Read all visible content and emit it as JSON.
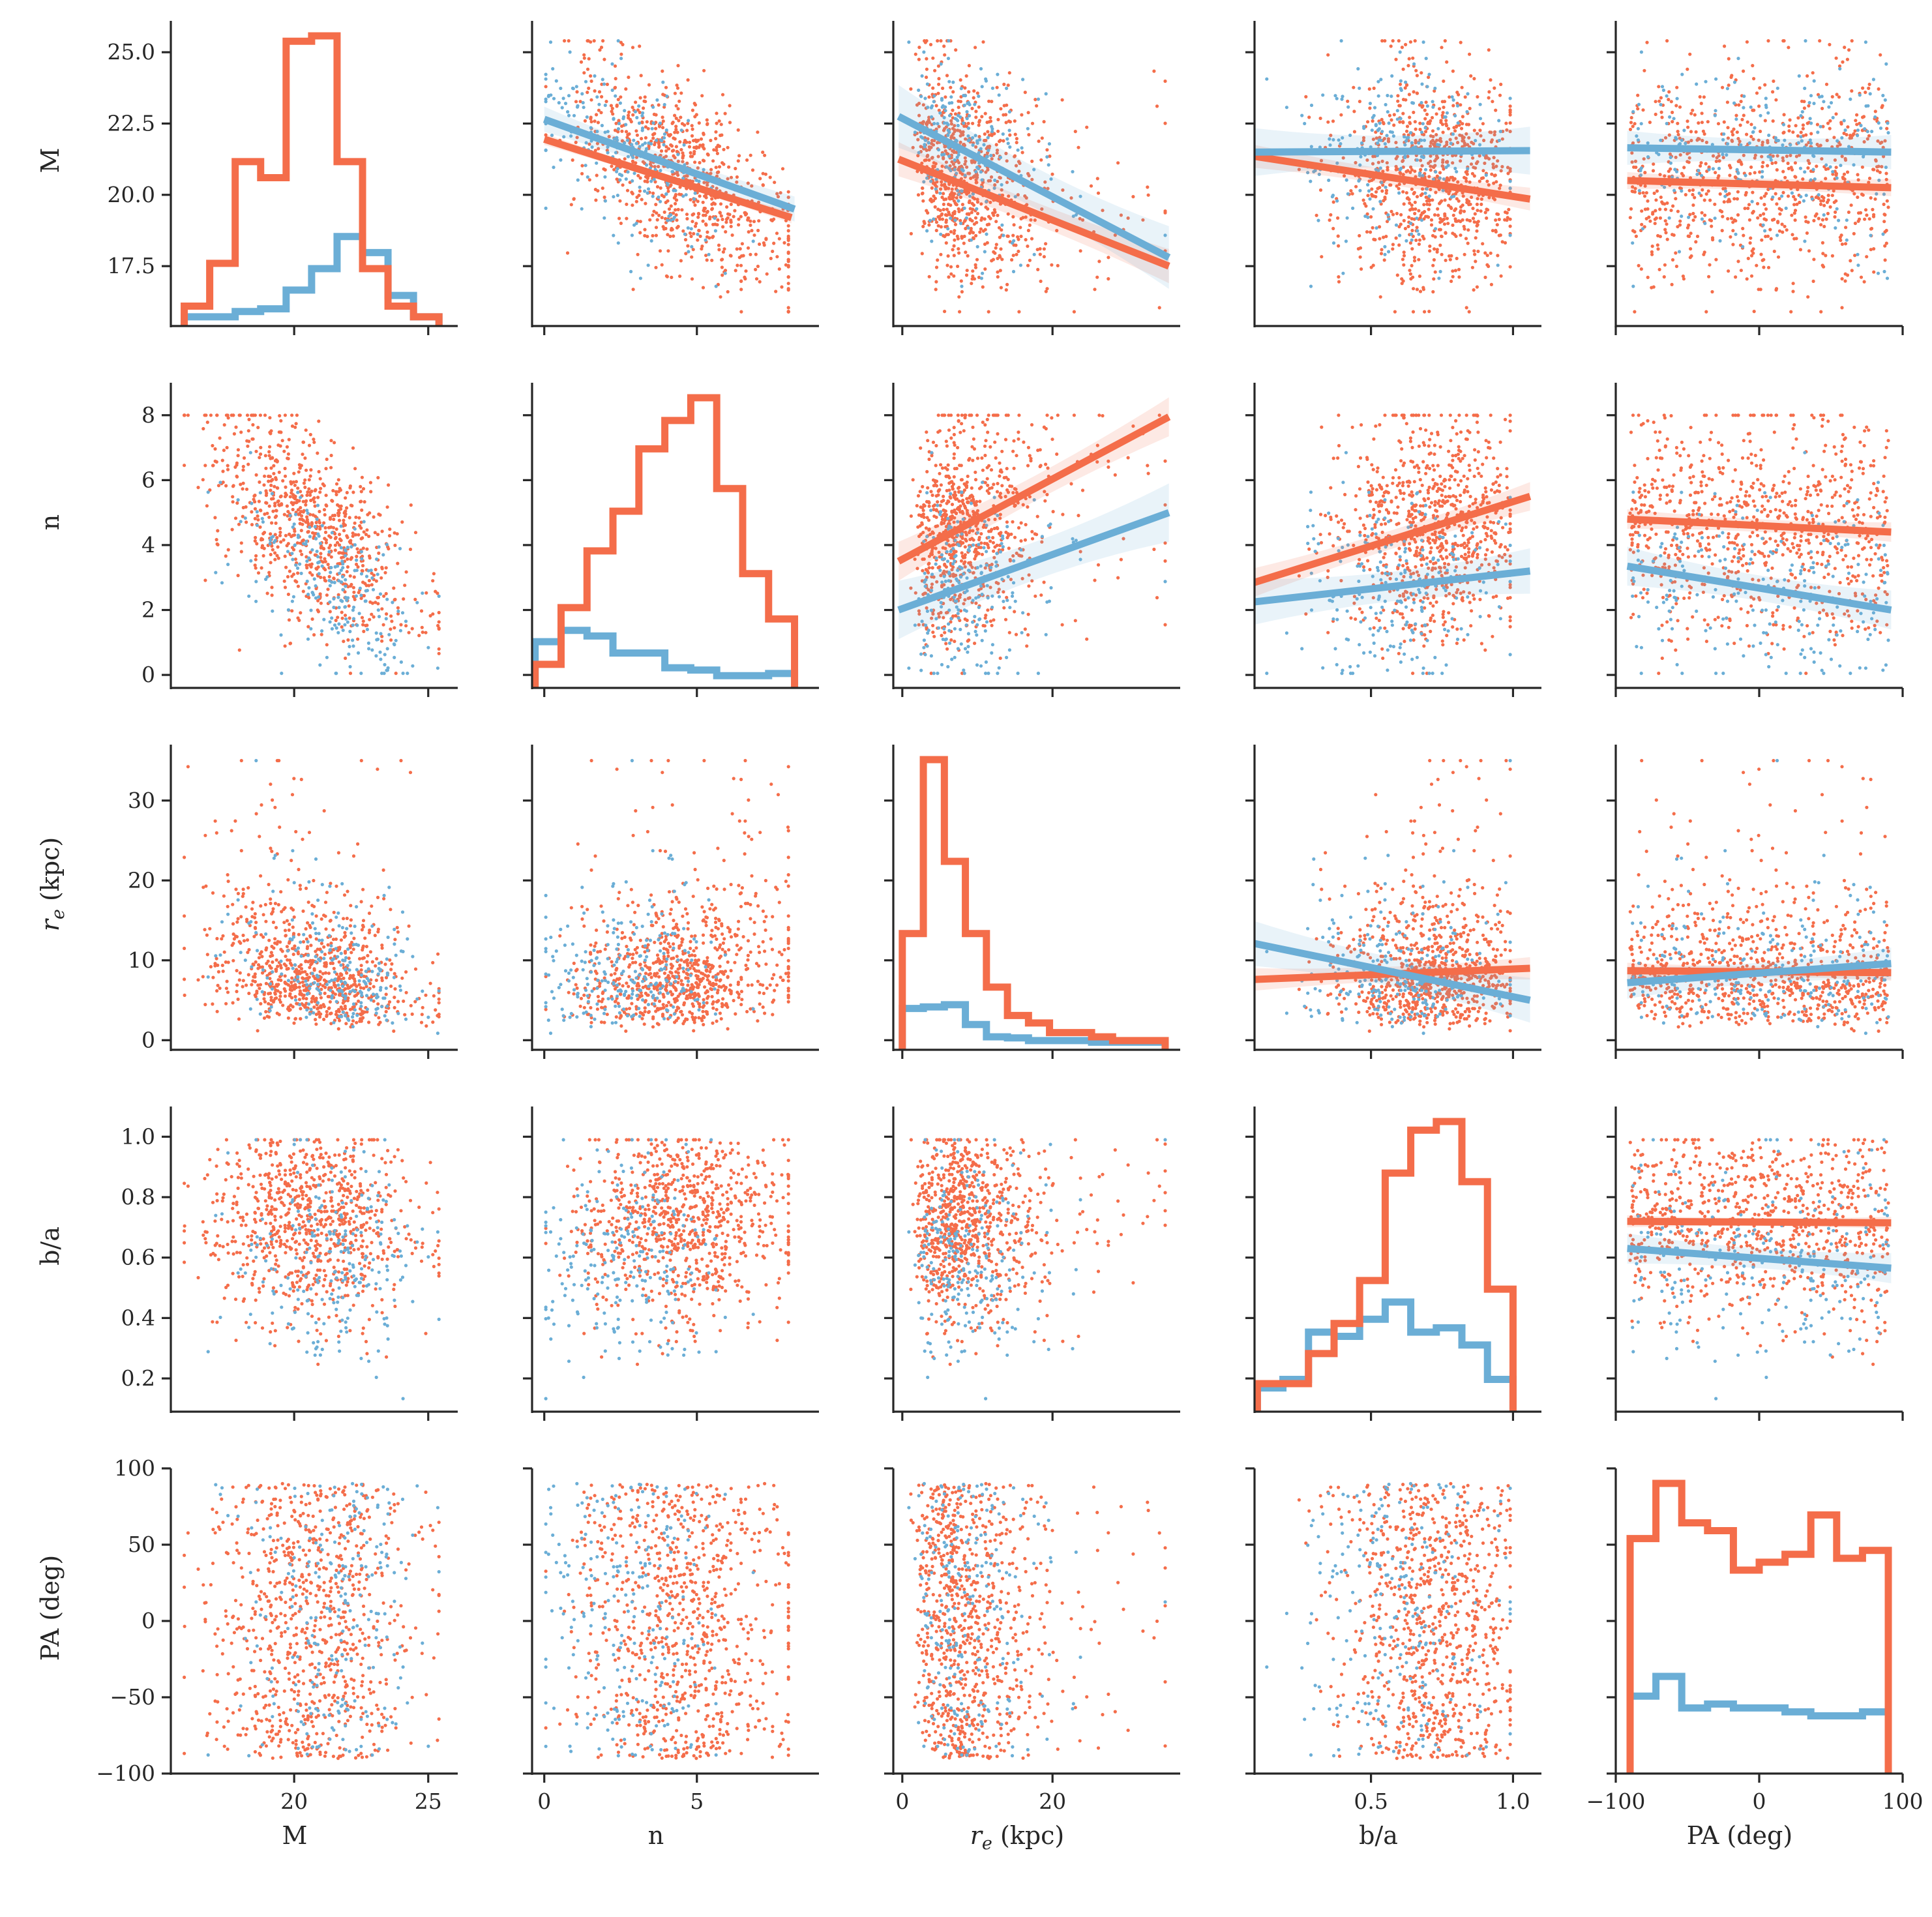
{
  "chart_data": {
    "type": "scatter",
    "kind": "pairplot",
    "variables": [
      {
        "key": "M",
        "label": "M",
        "label_base": "",
        "label_italic": "",
        "label_sub": "",
        "label_suffix": "",
        "range": [
          15.4,
          26.1
        ],
        "ticks": [
          17.5,
          20.0,
          22.5,
          25.0
        ],
        "tick_labels": [
          "17.5",
          "20.0",
          "22.5",
          "25.0"
        ],
        "x_ticks": [
          20,
          25
        ],
        "x_tick_labels": [
          "20",
          "25"
        ]
      },
      {
        "key": "n",
        "label": "n",
        "label_base": "",
        "label_italic": "",
        "label_sub": "",
        "label_suffix": "",
        "range": [
          -0.4,
          9.0
        ],
        "ticks": [
          0,
          2,
          4,
          6,
          8
        ],
        "tick_labels": [
          "0",
          "2",
          "4",
          "6",
          "8"
        ],
        "x_ticks": [
          0,
          5
        ],
        "x_tick_labels": [
          "0",
          "5"
        ]
      },
      {
        "key": "re",
        "label": "",
        "label_base": "",
        "label_italic": "r",
        "label_sub": "e",
        "label_suffix": " (kpc)",
        "range": [
          -1.2,
          37.0
        ],
        "ticks": [
          0,
          10,
          20,
          30
        ],
        "tick_labels": [
          "0",
          "10",
          "20",
          "30"
        ],
        "x_ticks": [
          0,
          20
        ],
        "x_tick_labels": [
          "0",
          "20"
        ]
      },
      {
        "key": "ba",
        "label": "b/a",
        "label_base": "",
        "label_italic": "",
        "label_sub": "",
        "label_suffix": "",
        "range": [
          0.09,
          1.1
        ],
        "ticks": [
          0.2,
          0.4,
          0.6,
          0.8,
          1.0
        ],
        "tick_labels": [
          "0.2",
          "0.4",
          "0.6",
          "0.8",
          "1.0"
        ],
        "x_ticks": [
          0.5,
          1.0
        ],
        "x_tick_labels": [
          "0.5",
          "1.0"
        ]
      },
      {
        "key": "PA",
        "label": "PA (deg)",
        "label_base": "",
        "label_italic": "",
        "label_sub": "",
        "label_suffix": "",
        "range": [
          -100,
          100
        ],
        "ticks": [
          -100,
          -50,
          0,
          50,
          100
        ],
        "tick_labels": [
          "−100",
          "−50",
          "0",
          "50",
          "100"
        ],
        "x_ticks": [
          -100,
          0,
          100
        ],
        "x_tick_labels": [
          "−100",
          "0",
          "100"
        ]
      }
    ],
    "series": [
      {
        "color": "#f46d4a",
        "line_width": 11,
        "n_points": 820,
        "mean": {
          "M": 20.6,
          "n": 4.6,
          "re": 8.2,
          "ba": 0.72,
          "PA": 0
        },
        "sd": {
          "M": 1.9,
          "n": 1.8,
          "re": 5.2,
          "ba": 0.16,
          "PA": 52
        }
      },
      {
        "color": "#6baed6",
        "line_width": 11,
        "n_points": 230,
        "mean": {
          "M": 21.6,
          "n": 2.7,
          "re": 7.8,
          "ba": 0.6,
          "PA": 0
        },
        "sd": {
          "M": 1.6,
          "n": 1.6,
          "re": 5.0,
          "ba": 0.18,
          "PA": 52
        }
      }
    ],
    "histograms": {
      "M": {
        "edges": [
          15.9,
          16.85,
          17.8,
          18.75,
          19.7,
          20.65,
          21.6,
          22.55,
          23.5,
          24.45,
          25.4
        ],
        "series": [
          [
            0.25,
            1.05,
            2.95,
            2.65,
            5.2,
            5.3,
            2.95,
            0.95,
            0.25,
            0.05
          ],
          [
            0.05,
            0.05,
            0.15,
            0.2,
            0.55,
            0.95,
            1.55,
            1.25,
            0.45,
            0.05
          ]
        ]
      },
      "n": {
        "edges": [
          -0.3,
          0.55,
          1.4,
          2.25,
          3.1,
          3.95,
          4.8,
          5.65,
          6.5,
          7.35,
          8.2
        ],
        "series": [
          [
            0.15,
            0.65,
            1.15,
            1.5,
            2.05,
            2.3,
            2.5,
            1.7,
            0.95,
            0.55
          ],
          [
            0.35,
            0.45,
            0.4,
            0.25,
            0.25,
            0.12,
            0.1,
            0.05,
            0.05,
            0.07
          ]
        ]
      },
      "re": {
        "edges": [
          0,
          2.8,
          5.6,
          8.4,
          11.2,
          14.0,
          16.8,
          19.6,
          22.4,
          25.2,
          28.0,
          30.8,
          35.0
        ],
        "series": [
          [
            2.05,
            5.3,
            3.4,
            2.05,
            1.05,
            0.52,
            0.38,
            0.2,
            0.2,
            0.12,
            0.05,
            0.05
          ],
          [
            0.65,
            0.68,
            0.72,
            0.35,
            0.12,
            0.1,
            0.05,
            0.05,
            0.05,
            0.02,
            0.02,
            0.02
          ]
        ]
      },
      "ba": {
        "edges": [
          0.1,
          0.19,
          0.28,
          0.37,
          0.46,
          0.55,
          0.64,
          0.73,
          0.82,
          0.91,
          1.0
        ],
        "series": [
          [
            0.25,
            0.25,
            0.6,
            0.95,
            1.45,
            2.7,
            3.2,
            3.3,
            2.6,
            1.35
          ],
          [
            0.2,
            0.3,
            0.85,
            0.8,
            1.0,
            1.2,
            0.85,
            0.9,
            0.7,
            0.3
          ]
        ]
      },
      "PA": {
        "edges": [
          -90,
          -72,
          -54,
          -36,
          -18,
          0,
          18,
          36,
          54,
          72,
          90
        ],
        "series": [
          [
            0.58,
            0.72,
            0.62,
            0.6,
            0.5,
            0.52,
            0.54,
            0.64,
            0.53,
            0.55
          ],
          [
            0.18,
            0.23,
            0.15,
            0.16,
            0.15,
            0.15,
            0.14,
            0.13,
            0.13,
            0.14
          ]
        ]
      }
    },
    "regressions": {
      "0-1": [
        {
          "x": [
            0,
            8.1
          ],
          "y": [
            21.95,
            19.2
          ],
          "band": 0.1
        },
        {
          "x": [
            0,
            8.2
          ],
          "y": [
            22.65,
            19.5
          ],
          "band": 0.22
        }
      ],
      "0-2": [
        {
          "x": [
            -0.5,
            35.5
          ],
          "y": [
            21.25,
            17.5
          ],
          "band": 0.3
        },
        {
          "x": [
            -0.5,
            35.5
          ],
          "y": [
            22.75,
            17.8
          ],
          "band": 0.55
        }
      ],
      "0-3": [
        {
          "x": [
            0.09,
            1.06
          ],
          "y": [
            21.35,
            19.85
          ],
          "band": 0.2
        },
        {
          "x": [
            0.09,
            1.06
          ],
          "y": [
            21.5,
            21.55
          ],
          "band": 0.42
        }
      ],
      "0-4": [
        {
          "x": [
            -92,
            92
          ],
          "y": [
            20.5,
            20.25
          ],
          "band": 0.15
        },
        {
          "x": [
            -92,
            92
          ],
          "y": [
            21.65,
            21.5
          ],
          "band": 0.3
        }
      ],
      "1-2": [
        {
          "x": [
            -0.5,
            35.5
          ],
          "y": [
            3.5,
            7.95
          ],
          "band": 0.3
        },
        {
          "x": [
            -0.5,
            35.5
          ],
          "y": [
            2.0,
            5.0
          ],
          "band": 0.45
        }
      ],
      "1-3": [
        {
          "x": [
            0.09,
            1.06
          ],
          "y": [
            2.85,
            5.5
          ],
          "band": 0.22
        },
        {
          "x": [
            0.09,
            1.06
          ],
          "y": [
            2.25,
            3.2
          ],
          "band": 0.35
        }
      ],
      "1-4": [
        {
          "x": [
            -92,
            92
          ],
          "y": [
            4.8,
            4.4
          ],
          "band": 0.15
        },
        {
          "x": [
            -92,
            92
          ],
          "y": [
            3.35,
            2.0
          ],
          "band": 0.3
        }
      ],
      "2-3": [
        {
          "x": [
            0.09,
            1.06
          ],
          "y": [
            7.6,
            9.0
          ],
          "band": 0.7
        },
        {
          "x": [
            0.09,
            1.06
          ],
          "y": [
            12.1,
            5.0
          ],
          "band": 1.4
        }
      ],
      "2-4": [
        {
          "x": [
            -92,
            92
          ],
          "y": [
            8.7,
            8.45
          ],
          "band": 0.5
        },
        {
          "x": [
            -92,
            92
          ],
          "y": [
            7.2,
            9.6
          ],
          "band": 1.0
        }
      ],
      "3-4": [
        {
          "x": [
            -92,
            92
          ],
          "y": [
            0.72,
            0.715
          ],
          "band": 0.01
        },
        {
          "x": [
            -92,
            92
          ],
          "y": [
            0.63,
            0.565
          ],
          "band": 0.025
        }
      ]
    }
  }
}
